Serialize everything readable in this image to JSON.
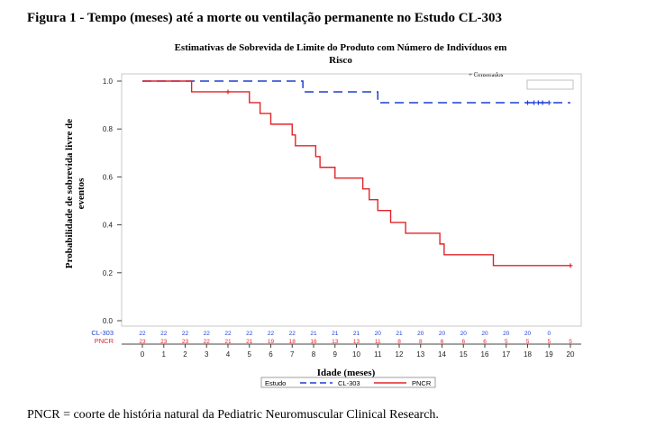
{
  "figure_title": "Figura 1 - Tempo (meses) até a morte ou ventilação permanente no Estudo CL-303",
  "footnote": "PNCR = coorte de história natural da Pediatric Neuromuscular Clinical Research.",
  "chart_data": {
    "type": "line",
    "subtype": "kaplan-meier step",
    "title": "Estimativas de Sobrevida de Limite do Produto com Número de Indivíduos em Risco",
    "censored_label": "+ Censorados",
    "xlabel": "Idade (meses)",
    "ylabel": "Probabilidade de sobrevida livre de eventos",
    "xlim": [
      0,
      20
    ],
    "ylim": [
      0,
      1.0
    ],
    "x_ticks": [
      "0",
      "1",
      "2",
      "3",
      "4",
      "5",
      "6",
      "7",
      "8",
      "9",
      "10",
      "11",
      "12",
      "13",
      "14",
      "15",
      "16",
      "17",
      "18",
      "19",
      "20"
    ],
    "y_ticks": [
      "0.0",
      "0.2",
      "0.4",
      "0.6",
      "0.8",
      "1.0"
    ],
    "grid": false,
    "legend": {
      "title": "Estudo",
      "position": "bottom"
    },
    "series": [
      {
        "name": "CL-303",
        "color": "#1f3fd1",
        "style": "dashed",
        "steps": [
          [
            0,
            1.0
          ],
          [
            7.5,
            0.955
          ],
          [
            11,
            0.91
          ],
          [
            20,
            0.91
          ]
        ],
        "censored_x": [
          18.0,
          18.3,
          18.5,
          18.7,
          19.0
        ]
      },
      {
        "name": "PNCR",
        "color": "#e0252a",
        "style": "solid",
        "steps": [
          [
            0,
            1.0
          ],
          [
            2.3,
            0.955
          ],
          [
            5.0,
            0.91
          ],
          [
            5.5,
            0.865
          ],
          [
            6.0,
            0.82
          ],
          [
            7.0,
            0.775
          ],
          [
            7.15,
            0.73
          ],
          [
            8.1,
            0.685
          ],
          [
            8.3,
            0.64
          ],
          [
            9.0,
            0.595
          ],
          [
            10.3,
            0.55
          ],
          [
            10.6,
            0.505
          ],
          [
            11.0,
            0.46
          ],
          [
            11.6,
            0.41
          ],
          [
            12.3,
            0.365
          ],
          [
            13.9,
            0.32
          ],
          [
            14.1,
            0.275
          ],
          [
            16.4,
            0.23
          ],
          [
            20,
            0.23
          ]
        ],
        "censored_x": [
          4.0,
          20.0
        ]
      }
    ],
    "at_risk": {
      "CL-303": [
        "22",
        "22",
        "22",
        "22",
        "22",
        "22",
        "22",
        "22",
        "21",
        "21",
        "21",
        "20",
        "21",
        "20",
        "20",
        "20",
        "20",
        "20",
        "20",
        "0",
        ""
      ],
      "PNCR": [
        "23",
        "23",
        "23",
        "22",
        "21",
        "21",
        "19",
        "18",
        "16",
        "13",
        "13",
        "11",
        "8",
        "8",
        "6",
        "6",
        "6",
        "5",
        "5",
        "5",
        "5"
      ]
    }
  }
}
